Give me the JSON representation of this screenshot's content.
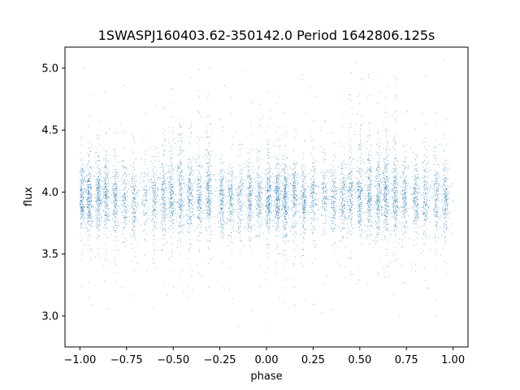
{
  "chart_data": {
    "type": "scatter",
    "title": "1SWASPJ160403.62-350142.0 Period 1642806.125s",
    "xlabel": "phase",
    "ylabel": "flux",
    "xlim": [
      -1.08,
      1.08
    ],
    "ylim": [
      2.75,
      5.17
    ],
    "x_ticks": [
      -1.0,
      -0.75,
      -0.5,
      -0.25,
      0.0,
      0.25,
      0.5,
      0.75,
      1.0
    ],
    "x_tick_labels": [
      "−1.00",
      "−0.75",
      "−0.50",
      "−0.25",
      "0.00",
      "0.25",
      "0.50",
      "0.75",
      "1.00"
    ],
    "y_ticks": [
      3.0,
      3.5,
      4.0,
      4.5,
      5.0
    ],
    "y_tick_labels": [
      "3.0",
      "3.5",
      "4.0",
      "4.5",
      "5.0"
    ],
    "grid": false,
    "point_color": "#1f77b4",
    "phase_range": [
      -1.0,
      1.0
    ],
    "flux_mean": 3.95,
    "flux_core_spread": 0.14,
    "cluster_phases": [
      -0.99,
      -0.95,
      -0.9,
      -0.86,
      -0.81,
      -0.76,
      -0.71,
      -0.65,
      -0.6,
      -0.55,
      -0.51,
      -0.46,
      -0.41,
      -0.36,
      -0.31,
      -0.24,
      -0.19,
      -0.14,
      -0.09,
      -0.04,
      0.01,
      0.06,
      0.1,
      0.15,
      0.2,
      0.25,
      0.31,
      0.36,
      0.41,
      0.45,
      0.5,
      0.55,
      0.6,
      0.64,
      0.69,
      0.74,
      0.8,
      0.85,
      0.91,
      0.96
    ],
    "cluster_densities": [
      3.0,
      3.5,
      3.0,
      2.5,
      2.5,
      2.0,
      2.0,
      1.2,
      1.8,
      2.2,
      3.0,
      2.5,
      2.8,
      2.5,
      3.0,
      2.2,
      2.0,
      1.8,
      2.5,
      2.2,
      3.0,
      3.0,
      3.5,
      3.0,
      2.5,
      2.0,
      1.5,
      1.8,
      2.2,
      2.5,
      3.0,
      2.8,
      3.0,
      3.0,
      3.0,
      2.5,
      2.5,
      2.2,
      2.0,
      2.2
    ],
    "n_points": 9000
  }
}
